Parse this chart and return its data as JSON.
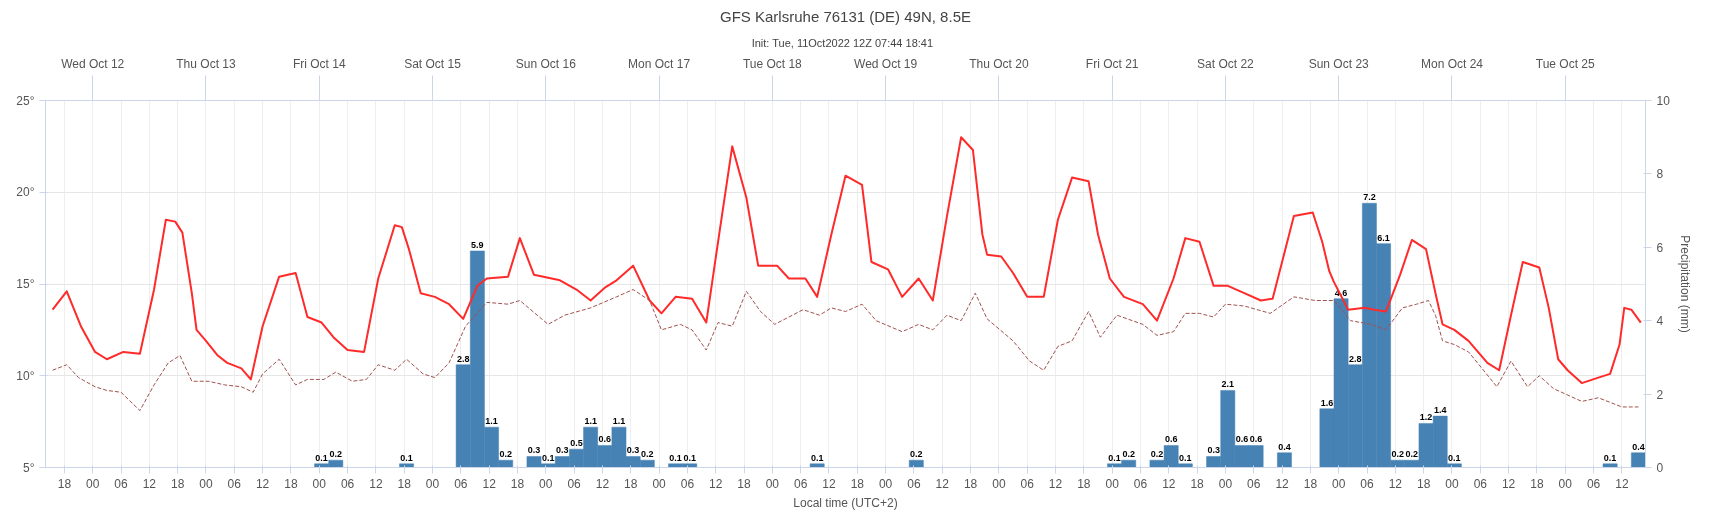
{
  "chart_data": {
    "type": "bar",
    "title": "GFS Karlsruhe 76131 (DE) 49N, 8.5E",
    "subtitle": "Init: Tue, 11Oct2022 12Z  07:44  18:41",
    "xlabel": "Local time (UTC+2)",
    "y2label": "Precipitation (mm)",
    "xlim": [
      "2022-10-11T14:00",
      "2022-10-25T17:00"
    ],
    "x2lim": [
      "2022-10-11T14:00",
      "2022-10-25T17:00"
    ],
    "ylim": [
      5,
      25
    ],
    "y2lim": [
      0,
      10
    ],
    "yticks": [
      {
        "value": 5,
        "label": "5°"
      },
      {
        "value": 10,
        "label": "10°"
      },
      {
        "value": 15,
        "label": "15°"
      },
      {
        "value": 20,
        "label": "20°"
      },
      {
        "value": 25,
        "label": "25°"
      }
    ],
    "y2ticks": [
      0,
      2,
      4,
      6,
      8,
      10
    ],
    "x2ticks": [
      {
        "value": "2022-10-12T00:00",
        "label": "Wed Oct 12"
      },
      {
        "value": "2022-10-13T00:00",
        "label": "Thu Oct 13"
      },
      {
        "value": "2022-10-14T00:00",
        "label": "Fri Oct 14"
      },
      {
        "value": "2022-10-15T00:00",
        "label": "Sat Oct 15"
      },
      {
        "value": "2022-10-16T00:00",
        "label": "Sun Oct 16"
      },
      {
        "value": "2022-10-17T00:00",
        "label": "Mon Oct 17"
      },
      {
        "value": "2022-10-18T00:00",
        "label": "Tue Oct 18"
      },
      {
        "value": "2022-10-19T00:00",
        "label": "Wed Oct 19"
      },
      {
        "value": "2022-10-20T00:00",
        "label": "Thu Oct 20"
      },
      {
        "value": "2022-10-21T00:00",
        "label": "Fri Oct 21"
      },
      {
        "value": "2022-10-22T00:00",
        "label": "Sat Oct 22"
      },
      {
        "value": "2022-10-23T00:00",
        "label": "Sun Oct 23"
      },
      {
        "value": "2022-10-24T00:00",
        "label": "Mon Oct 24"
      },
      {
        "value": "2022-10-25T00:00",
        "label": "Tue Oct 25"
      }
    ],
    "xticks": [
      {
        "value": "2022-10-11T18:00",
        "label": "18"
      },
      {
        "value": "2022-10-12T00:00",
        "label": "00"
      },
      {
        "value": "2022-10-12T06:00",
        "label": "06"
      },
      {
        "value": "2022-10-12T12:00",
        "label": "12"
      },
      {
        "value": "2022-10-12T18:00",
        "label": "18"
      },
      {
        "value": "2022-10-13T00:00",
        "label": "00"
      },
      {
        "value": "2022-10-13T06:00",
        "label": "06"
      },
      {
        "value": "2022-10-13T12:00",
        "label": "12"
      },
      {
        "value": "2022-10-13T18:00",
        "label": "18"
      },
      {
        "value": "2022-10-14T00:00",
        "label": "00"
      },
      {
        "value": "2022-10-14T06:00",
        "label": "06"
      },
      {
        "value": "2022-10-14T12:00",
        "label": "12"
      },
      {
        "value": "2022-10-14T18:00",
        "label": "18"
      },
      {
        "value": "2022-10-15T00:00",
        "label": "00"
      },
      {
        "value": "2022-10-15T06:00",
        "label": "06"
      },
      {
        "value": "2022-10-15T12:00",
        "label": "12"
      },
      {
        "value": "2022-10-15T18:00",
        "label": "18"
      },
      {
        "value": "2022-10-16T00:00",
        "label": "00"
      },
      {
        "value": "2022-10-16T06:00",
        "label": "06"
      },
      {
        "value": "2022-10-16T12:00",
        "label": "12"
      },
      {
        "value": "2022-10-16T18:00",
        "label": "18"
      },
      {
        "value": "2022-10-17T00:00",
        "label": "00"
      },
      {
        "value": "2022-10-17T06:00",
        "label": "06"
      },
      {
        "value": "2022-10-17T12:00",
        "label": "12"
      },
      {
        "value": "2022-10-17T18:00",
        "label": "18"
      },
      {
        "value": "2022-10-18T00:00",
        "label": "00"
      },
      {
        "value": "2022-10-18T06:00",
        "label": "06"
      },
      {
        "value": "2022-10-18T12:00",
        "label": "12"
      },
      {
        "value": "2022-10-18T18:00",
        "label": "18"
      },
      {
        "value": "2022-10-19T00:00",
        "label": "00"
      },
      {
        "value": "2022-10-19T06:00",
        "label": "06"
      },
      {
        "value": "2022-10-19T12:00",
        "label": "12"
      },
      {
        "value": "2022-10-19T18:00",
        "label": "18"
      },
      {
        "value": "2022-10-20T00:00",
        "label": "00"
      },
      {
        "value": "2022-10-20T06:00",
        "label": "06"
      },
      {
        "value": "2022-10-20T12:00",
        "label": "12"
      },
      {
        "value": "2022-10-20T18:00",
        "label": "18"
      },
      {
        "value": "2022-10-21T00:00",
        "label": "00"
      },
      {
        "value": "2022-10-21T06:00",
        "label": "06"
      },
      {
        "value": "2022-10-21T12:00",
        "label": "12"
      },
      {
        "value": "2022-10-21T18:00",
        "label": "18"
      },
      {
        "value": "2022-10-22T00:00",
        "label": "00"
      },
      {
        "value": "2022-10-22T06:00",
        "label": "06"
      },
      {
        "value": "2022-10-22T12:00",
        "label": "12"
      },
      {
        "value": "2022-10-22T18:00",
        "label": "18"
      },
      {
        "value": "2022-10-23T00:00",
        "label": "00"
      },
      {
        "value": "2022-10-23T06:00",
        "label": "06"
      },
      {
        "value": "2022-10-23T12:00",
        "label": "12"
      },
      {
        "value": "2022-10-23T18:00",
        "label": "18"
      },
      {
        "value": "2022-10-24T00:00",
        "label": "00"
      },
      {
        "value": "2022-10-24T06:00",
        "label": "06"
      },
      {
        "value": "2022-10-24T12:00",
        "label": "12"
      },
      {
        "value": "2022-10-24T18:00",
        "label": "18"
      },
      {
        "value": "2022-10-25T00:00",
        "label": "00"
      },
      {
        "value": "2022-10-25T06:00",
        "label": "06"
      },
      {
        "value": "2022-10-25T12:00",
        "label": "12"
      }
    ],
    "grid": true,
    "series": [
      {
        "type": "line",
        "color": "#ff2a2a",
        "x": [
          "2022-10-11T15:30",
          "2022-10-11T18:30",
          "2022-10-11T21:30",
          "2022-10-12T00:30",
          "2022-10-12T03:00",
          "2022-10-12T06:30",
          "2022-10-12T10:00",
          "2022-10-12T13:00",
          "2022-10-12T15:30",
          "2022-10-12T17:30",
          "2022-10-12T19:00",
          "2022-10-12T21:00",
          "2022-10-12T22:00",
          "2022-10-13T00:00",
          "2022-10-13T02:30",
          "2022-10-13T04:30",
          "2022-10-13T07:30",
          "2022-10-13T09:30",
          "2022-10-13T12:00",
          "2022-10-13T15:30",
          "2022-10-13T19:00",
          "2022-10-13T21:30",
          "2022-10-14T00:30",
          "2022-10-14T03:00",
          "2022-10-14T06:00",
          "2022-10-14T09:30",
          "2022-10-14T12:30",
          "2022-10-14T16:00",
          "2022-10-14T17:30",
          "2022-10-14T19:00",
          "2022-10-14T21:30",
          "2022-10-15T00:30",
          "2022-10-15T03:30",
          "2022-10-15T06:30",
          "2022-10-15T09:30",
          "2022-10-15T11:30",
          "2022-10-15T16:00",
          "2022-10-15T18:30",
          "2022-10-15T21:30",
          "2022-10-16T03:00",
          "2022-10-16T06:30",
          "2022-10-16T09:30",
          "2022-10-16T12:30",
          "2022-10-16T15:00",
          "2022-10-16T18:30",
          "2022-10-16T22:00",
          "2022-10-17T00:30",
          "2022-10-17T03:30",
          "2022-10-17T07:00",
          "2022-10-17T10:00",
          "2022-10-17T12:30",
          "2022-10-17T15:30",
          "2022-10-17T18:30",
          "2022-10-17T21:00",
          "2022-10-18T01:00",
          "2022-10-18T03:30",
          "2022-10-18T07:00",
          "2022-10-18T09:30",
          "2022-10-18T12:30",
          "2022-10-18T15:30",
          "2022-10-18T19:00",
          "2022-10-18T21:00",
          "2022-10-19T00:30",
          "2022-10-19T03:30",
          "2022-10-19T07:00",
          "2022-10-19T10:00",
          "2022-10-19T13:00",
          "2022-10-19T16:00",
          "2022-10-19T18:30",
          "2022-10-19T20:30",
          "2022-10-19T21:30",
          "2022-10-20T00:30",
          "2022-10-20T03:00",
          "2022-10-20T06:00",
          "2022-10-20T09:30",
          "2022-10-20T12:30",
          "2022-10-20T15:30",
          "2022-10-20T19:00",
          "2022-10-20T21:00",
          "2022-10-20T23:30",
          "2022-10-21T02:30",
          "2022-10-21T06:30",
          "2022-10-21T09:30",
          "2022-10-21T13:00",
          "2022-10-21T15:30",
          "2022-10-21T18:30",
          "2022-10-21T21:30",
          "2022-10-22T00:30",
          "2022-10-22T04:00",
          "2022-10-22T07:30",
          "2022-10-22T10:00",
          "2022-10-22T14:30",
          "2022-10-22T18:30",
          "2022-10-22T20:30",
          "2022-10-22T22:00",
          "2022-10-22T23:00",
          "2022-10-23T02:00",
          "2022-10-23T05:30",
          "2022-10-23T07:30",
          "2022-10-23T10:00",
          "2022-10-23T13:00",
          "2022-10-23T15:30",
          "2022-10-23T18:30",
          "2022-10-23T20:30",
          "2022-10-23T22:00",
          "2022-10-24T00:30",
          "2022-10-24T03:30",
          "2022-10-24T07:30",
          "2022-10-24T10:00",
          "2022-10-24T12:30",
          "2022-10-24T15:00",
          "2022-10-24T18:30",
          "2022-10-24T20:30",
          "2022-10-24T22:30",
          "2022-10-25T00:30",
          "2022-10-25T03:30",
          "2022-10-25T07:00",
          "2022-10-25T09:30",
          "2022-10-25T11:30",
          "2022-10-25T12:30",
          "2022-10-25T14:00",
          "2022-10-25T16:00"
        ],
        "values": [
          13.6,
          14.6,
          12.7,
          11.3,
          10.9,
          11.3,
          11.2,
          14.7,
          18.5,
          18.4,
          17.8,
          14.5,
          12.5,
          11.9,
          11.1,
          10.7,
          10.4,
          9.8,
          12.7,
          15.4,
          15.6,
          13.2,
          12.9,
          12.1,
          11.4,
          11.3,
          15.3,
          18.2,
          18.1,
          16.9,
          14.5,
          14.3,
          13.9,
          13.1,
          14.9,
          15.3,
          15.4,
          17.5,
          15.5,
          15.2,
          14.7,
          14.1,
          14.8,
          15.2,
          16.0,
          14.1,
          13.4,
          14.3,
          14.2,
          12.9,
          17.3,
          22.5,
          19.7,
          16.0,
          16.0,
          15.3,
          15.3,
          14.3,
          17.7,
          20.9,
          20.4,
          16.2,
          15.8,
          14.3,
          15.3,
          14.1,
          18.7,
          23.0,
          22.3,
          17.7,
          16.6,
          16.5,
          15.6,
          14.3,
          14.3,
          18.5,
          20.8,
          20.6,
          17.7,
          15.3,
          14.3,
          13.9,
          13.0,
          15.3,
          17.5,
          17.3,
          14.9,
          14.9,
          14.5,
          14.1,
          14.2,
          18.7,
          18.9,
          17.3,
          15.7,
          15.1,
          13.6,
          13.7,
          13.6,
          13.5,
          15.5,
          17.4,
          16.9,
          14.5,
          12.8,
          12.5,
          11.9,
          10.7,
          10.3,
          13.3,
          16.2,
          15.9,
          13.7,
          10.9,
          10.3,
          9.6,
          9.9,
          10.1,
          11.7,
          13.7,
          13.6,
          12.9
        ]
      },
      {
        "type": "line",
        "line_style": "dashed",
        "color": "#a0524f",
        "x": [
          "2022-10-11T15:30",
          "2022-10-11T18:30",
          "2022-10-11T21:00",
          "2022-10-12T00:30",
          "2022-10-12T03:00",
          "2022-10-12T06:00",
          "2022-10-12T10:00",
          "2022-10-12T13:00",
          "2022-10-12T16:00",
          "2022-10-12T18:30",
          "2022-10-12T21:00",
          "2022-10-13T00:30",
          "2022-10-13T04:00",
          "2022-10-13T07:30",
          "2022-10-13T10:00",
          "2022-10-13T12:00",
          "2022-10-13T15:30",
          "2022-10-13T19:00",
          "2022-10-13T21:30",
          "2022-10-14T01:00",
          "2022-10-14T03:30",
          "2022-10-14T07:00",
          "2022-10-14T10:00",
          "2022-10-14T12:30",
          "2022-10-14T16:00",
          "2022-10-14T18:30",
          "2022-10-14T22:00",
          "2022-10-15T00:30",
          "2022-10-15T03:30",
          "2022-10-15T07:00",
          "2022-10-15T11:30",
          "2022-10-15T16:00",
          "2022-10-15T18:30",
          "2022-10-16T00:30",
          "2022-10-16T04:00",
          "2022-10-16T09:30",
          "2022-10-16T15:00",
          "2022-10-16T18:30",
          "2022-10-16T22:00",
          "2022-10-17T00:30",
          "2022-10-17T04:30",
          "2022-10-17T07:00",
          "2022-10-17T10:00",
          "2022-10-17T12:30",
          "2022-10-17T15:30",
          "2022-10-17T18:30",
          "2022-10-17T21:30",
          "2022-10-18T00:30",
          "2022-10-18T06:30",
          "2022-10-18T10:00",
          "2022-10-18T12:30",
          "2022-10-18T15:30",
          "2022-10-18T19:00",
          "2022-10-18T22:00",
          "2022-10-19T03:30",
          "2022-10-19T07:00",
          "2022-10-19T10:00",
          "2022-10-19T13:00",
          "2022-10-19T16:00",
          "2022-10-19T19:00",
          "2022-10-19T21:30",
          "2022-10-20T03:00",
          "2022-10-20T06:30",
          "2022-10-20T09:30",
          "2022-10-20T12:30",
          "2022-10-20T15:30",
          "2022-10-20T19:00",
          "2022-10-20T21:30",
          "2022-10-21T01:00",
          "2022-10-21T06:30",
          "2022-10-21T09:30",
          "2022-10-21T13:00",
          "2022-10-21T15:30",
          "2022-10-21T18:30",
          "2022-10-21T21:30",
          "2022-10-22T00:00",
          "2022-10-22T04:00",
          "2022-10-22T09:30",
          "2022-10-22T14:30",
          "2022-10-22T19:00",
          "2022-10-22T23:00",
          "2022-10-23T02:30",
          "2022-10-23T07:00",
          "2022-10-23T10:00",
          "2022-10-23T13:30",
          "2022-10-23T16:30",
          "2022-10-23T19:00",
          "2022-10-23T20:30",
          "2022-10-23T22:00",
          "2022-10-24T00:30",
          "2022-10-24T03:30",
          "2022-10-24T07:00",
          "2022-10-24T09:30",
          "2022-10-24T12:30",
          "2022-10-24T16:00",
          "2022-10-24T18:30",
          "2022-10-24T21:30",
          "2022-10-25T03:30",
          "2022-10-25T07:00",
          "2022-10-25T12:00",
          "2022-10-25T15:30"
        ],
        "values": [
          10.3,
          10.6,
          9.9,
          9.4,
          9.2,
          9.1,
          8.1,
          9.5,
          10.7,
          11.1,
          9.7,
          9.7,
          9.5,
          9.4,
          9.1,
          10.1,
          10.9,
          9.5,
          9.8,
          9.8,
          10.2,
          9.7,
          9.8,
          10.6,
          10.3,
          10.9,
          10.1,
          9.9,
          10.7,
          12.7,
          14.0,
          13.9,
          14.1,
          12.8,
          13.3,
          13.7,
          14.3,
          14.7,
          14.1,
          12.5,
          12.8,
          12.5,
          11.4,
          12.9,
          12.7,
          14.6,
          13.5,
          12.8,
          13.6,
          13.3,
          13.7,
          13.5,
          13.9,
          13.0,
          12.4,
          12.8,
          12.5,
          13.3,
          13.0,
          14.5,
          13.1,
          11.9,
          10.8,
          10.3,
          11.6,
          11.9,
          13.5,
          12.1,
          13.3,
          12.8,
          12.2,
          12.4,
          13.4,
          13.4,
          13.2,
          13.9,
          13.8,
          13.4,
          14.3,
          14.1,
          14.1,
          13.0,
          12.8,
          12.5,
          13.7,
          13.9,
          14.1,
          13.3,
          11.9,
          11.7,
          11.3,
          10.2,
          9.4,
          10.8,
          9.4,
          10.0,
          9.3,
          8.6,
          8.8,
          8.3,
          8.3
        ]
      },
      {
        "axis": "y2",
        "color": "#4682b4",
        "value_labels": [
          "0.1",
          "0.2",
          "0.1",
          "2.8",
          "5.9",
          "1.1",
          "0.2",
          "0.3",
          "0.1",
          "0.3",
          "0.5",
          "1.1",
          "0.6",
          "1.1",
          "0.3",
          "0.2",
          "0.1",
          "0.1",
          "0.1",
          "0.2",
          "0.1",
          "0.2",
          "0.2",
          "0.6",
          "0.1",
          "0.3",
          "2.1",
          "0.6",
          "0.6",
          "0.4",
          "1.6",
          "4.6",
          "2.8",
          "7.2",
          "6.1",
          "0.2",
          "0.2",
          "1.2",
          "1.4",
          "0.1",
          "0.1",
          "0.4"
        ],
        "x": [
          "2022-10-14T00:30",
          "2022-10-14T03:30",
          "2022-10-14T18:30",
          "2022-10-15T06:30",
          "2022-10-15T09:30",
          "2022-10-15T12:30",
          "2022-10-15T15:30",
          "2022-10-15T21:30",
          "2022-10-16T00:30",
          "2022-10-16T03:30",
          "2022-10-16T06:30",
          "2022-10-16T09:30",
          "2022-10-16T12:30",
          "2022-10-16T15:30",
          "2022-10-16T18:30",
          "2022-10-16T21:30",
          "2022-10-17T03:30",
          "2022-10-17T06:30",
          "2022-10-18T09:30",
          "2022-10-19T06:30",
          "2022-10-21T00:30",
          "2022-10-21T03:30",
          "2022-10-21T09:30",
          "2022-10-21T12:30",
          "2022-10-21T15:30",
          "2022-10-21T21:30",
          "2022-10-22T00:30",
          "2022-10-22T03:30",
          "2022-10-22T06:30",
          "2022-10-22T12:30",
          "2022-10-22T21:30",
          "2022-10-23T00:30",
          "2022-10-23T03:30",
          "2022-10-23T06:30",
          "2022-10-23T09:30",
          "2022-10-23T12:30",
          "2022-10-23T15:30",
          "2022-10-23T18:30",
          "2022-10-23T21:30",
          "2022-10-24T00:30",
          "2022-10-25T09:30",
          "2022-10-25T15:30"
        ],
        "values": [
          0.1,
          0.2,
          0.1,
          2.8,
          5.9,
          1.1,
          0.2,
          0.3,
          0.1,
          0.3,
          0.5,
          1.1,
          0.6,
          1.1,
          0.3,
          0.2,
          0.1,
          0.1,
          0.1,
          0.2,
          0.1,
          0.2,
          0.2,
          0.6,
          0.1,
          0.3,
          2.1,
          0.6,
          0.6,
          0.4,
          1.6,
          4.6,
          2.8,
          7.2,
          6.1,
          0.2,
          0.2,
          1.2,
          1.4,
          0.1,
          0.1,
          0.4
        ]
      }
    ]
  }
}
